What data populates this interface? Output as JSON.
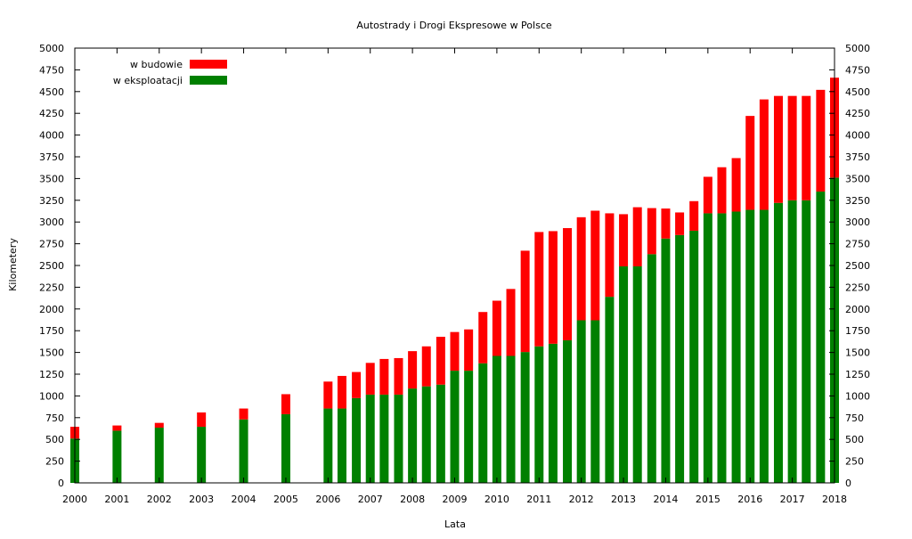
{
  "chart_data": {
    "type": "bar",
    "stacked": true,
    "title": "Autostrady i Drogi Ekspresowe w Polsce",
    "xlabel": "Lata",
    "ylabel": "Kilometery",
    "ylim": [
      0,
      5000
    ],
    "yticks": [
      0,
      250,
      500,
      750,
      1000,
      1250,
      1500,
      1750,
      2000,
      2250,
      2500,
      2750,
      3000,
      3250,
      3500,
      3750,
      4000,
      4250,
      4500,
      4750,
      5000
    ],
    "xlim": [
      2000,
      2018
    ],
    "xticks": [
      2000,
      2001,
      2002,
      2003,
      2004,
      2005,
      2006,
      2007,
      2008,
      2009,
      2010,
      2011,
      2012,
      2013,
      2014,
      2015,
      2016,
      2017,
      2018
    ],
    "right_axis": true,
    "grid": false,
    "legend_position": "top-left",
    "series": [
      {
        "name": "w eksploatacji",
        "color": "#008000",
        "points": [
          {
            "year": 2000.0,
            "value": 510
          },
          {
            "year": 2001.0,
            "value": 600
          },
          {
            "year": 2002.0,
            "value": 635
          },
          {
            "year": 2003.0,
            "value": 645
          },
          {
            "year": 2004.0,
            "value": 730
          },
          {
            "year": 2005.0,
            "value": 790
          },
          {
            "year": 2006.0,
            "value": 855
          },
          {
            "year": 2006.33,
            "value": 855
          },
          {
            "year": 2006.67,
            "value": 975
          },
          {
            "year": 2007.0,
            "value": 1015
          },
          {
            "year": 2007.33,
            "value": 1015
          },
          {
            "year": 2007.67,
            "value": 1015
          },
          {
            "year": 2008.0,
            "value": 1085
          },
          {
            "year": 2008.33,
            "value": 1110
          },
          {
            "year": 2008.67,
            "value": 1130
          },
          {
            "year": 2009.0,
            "value": 1290
          },
          {
            "year": 2009.33,
            "value": 1290
          },
          {
            "year": 2009.67,
            "value": 1375
          },
          {
            "year": 2010.0,
            "value": 1460
          },
          {
            "year": 2010.33,
            "value": 1460
          },
          {
            "year": 2010.67,
            "value": 1505
          },
          {
            "year": 2011.0,
            "value": 1570
          },
          {
            "year": 2011.33,
            "value": 1600
          },
          {
            "year": 2011.67,
            "value": 1640
          },
          {
            "year": 2012.0,
            "value": 1870
          },
          {
            "year": 2012.33,
            "value": 1870
          },
          {
            "year": 2012.67,
            "value": 2140
          },
          {
            "year": 2013.0,
            "value": 2490
          },
          {
            "year": 2013.33,
            "value": 2490
          },
          {
            "year": 2013.67,
            "value": 2630
          },
          {
            "year": 2014.0,
            "value": 2810
          },
          {
            "year": 2014.33,
            "value": 2850
          },
          {
            "year": 2014.67,
            "value": 2900
          },
          {
            "year": 2015.0,
            "value": 3100
          },
          {
            "year": 2015.33,
            "value": 3100
          },
          {
            "year": 2015.67,
            "value": 3120
          },
          {
            "year": 2016.0,
            "value": 3140
          },
          {
            "year": 2016.33,
            "value": 3140
          },
          {
            "year": 2016.67,
            "value": 3220
          },
          {
            "year": 2017.0,
            "value": 3250
          },
          {
            "year": 2017.33,
            "value": 3250
          },
          {
            "year": 2017.67,
            "value": 3350
          },
          {
            "year": 2018.0,
            "value": 3510
          }
        ]
      },
      {
        "name": "w budowie",
        "color": "#ff0000",
        "points": [
          {
            "year": 2000.0,
            "value": 135
          },
          {
            "year": 2001.0,
            "value": 60
          },
          {
            "year": 2002.0,
            "value": 55
          },
          {
            "year": 2003.0,
            "value": 165
          },
          {
            "year": 2004.0,
            "value": 125
          },
          {
            "year": 2005.0,
            "value": 230
          },
          {
            "year": 2006.0,
            "value": 310
          },
          {
            "year": 2006.33,
            "value": 375
          },
          {
            "year": 2006.67,
            "value": 300
          },
          {
            "year": 2007.0,
            "value": 365
          },
          {
            "year": 2007.33,
            "value": 410
          },
          {
            "year": 2007.67,
            "value": 420
          },
          {
            "year": 2008.0,
            "value": 430
          },
          {
            "year": 2008.33,
            "value": 460
          },
          {
            "year": 2008.67,
            "value": 550
          },
          {
            "year": 2009.0,
            "value": 445
          },
          {
            "year": 2009.33,
            "value": 475
          },
          {
            "year": 2009.67,
            "value": 590
          },
          {
            "year": 2010.0,
            "value": 635
          },
          {
            "year": 2010.33,
            "value": 770
          },
          {
            "year": 2010.67,
            "value": 1165
          },
          {
            "year": 2011.0,
            "value": 1315
          },
          {
            "year": 2011.33,
            "value": 1295
          },
          {
            "year": 2011.67,
            "value": 1290
          },
          {
            "year": 2012.0,
            "value": 1185
          },
          {
            "year": 2012.33,
            "value": 1260
          },
          {
            "year": 2012.67,
            "value": 960
          },
          {
            "year": 2013.0,
            "value": 600
          },
          {
            "year": 2013.33,
            "value": 680
          },
          {
            "year": 2013.67,
            "value": 530
          },
          {
            "year": 2014.0,
            "value": 345
          },
          {
            "year": 2014.33,
            "value": 260
          },
          {
            "year": 2014.67,
            "value": 340
          },
          {
            "year": 2015.0,
            "value": 420
          },
          {
            "year": 2015.33,
            "value": 530
          },
          {
            "year": 2015.67,
            "value": 615
          },
          {
            "year": 2016.0,
            "value": 1080
          },
          {
            "year": 2016.33,
            "value": 1270
          },
          {
            "year": 2016.67,
            "value": 1230
          },
          {
            "year": 2017.0,
            "value": 1200
          },
          {
            "year": 2017.33,
            "value": 1200
          },
          {
            "year": 2017.67,
            "value": 1170
          },
          {
            "year": 2018.0,
            "value": 1150
          }
        ]
      }
    ]
  }
}
